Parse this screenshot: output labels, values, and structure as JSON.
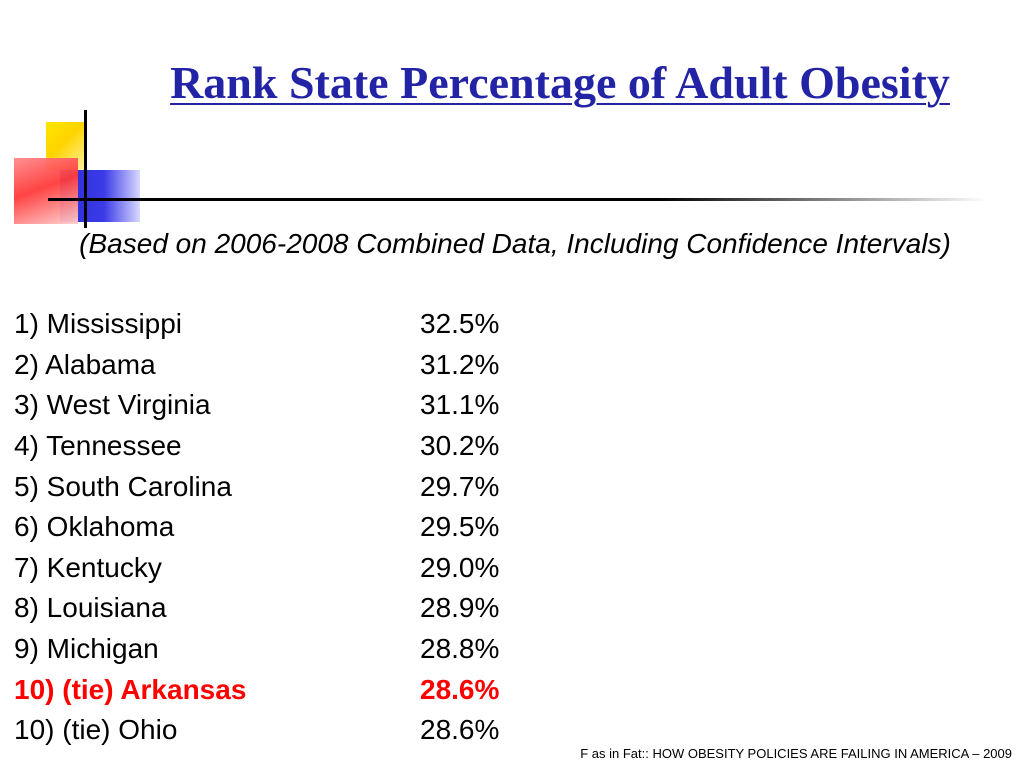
{
  "slide": {
    "title": "Rank State Percentage of Adult Obesity",
    "subtitle": "(Based on 2006-2008 Combined Data, Including Confidence Intervals)",
    "highlight_color": "#ff0000",
    "title_color": "#2323a6",
    "rows": [
      {
        "label": "1) Mississippi",
        "value": "32.5%",
        "highlight": false
      },
      {
        "label": "2) Alabama",
        "value": "31.2%",
        "highlight": false
      },
      {
        "label": "3) West Virginia",
        "value": "31.1%",
        "highlight": false
      },
      {
        "label": "4) Tennessee",
        "value": "30.2%",
        "highlight": false
      },
      {
        "label": "5) South Carolina",
        "value": "29.7%",
        "highlight": false
      },
      {
        "label": "6) Oklahoma",
        "value": "29.5%",
        "highlight": false
      },
      {
        "label": "7) Kentucky",
        "value": "29.0%",
        "highlight": false
      },
      {
        "label": "8) Louisiana",
        "value": "28.9%",
        "highlight": false
      },
      {
        "label": "9) Michigan",
        "value": "28.8%",
        "highlight": false
      },
      {
        "label": "10) (tie) Arkansas",
        "value": "28.6%",
        "highlight": true
      },
      {
        "label": "10) (tie) Ohio",
        "value": "28.6%",
        "highlight": false
      }
    ],
    "source": "F as in Fat:: HOW OBESITY POLICIES ARE FAILING IN AMERICA – 2009"
  }
}
